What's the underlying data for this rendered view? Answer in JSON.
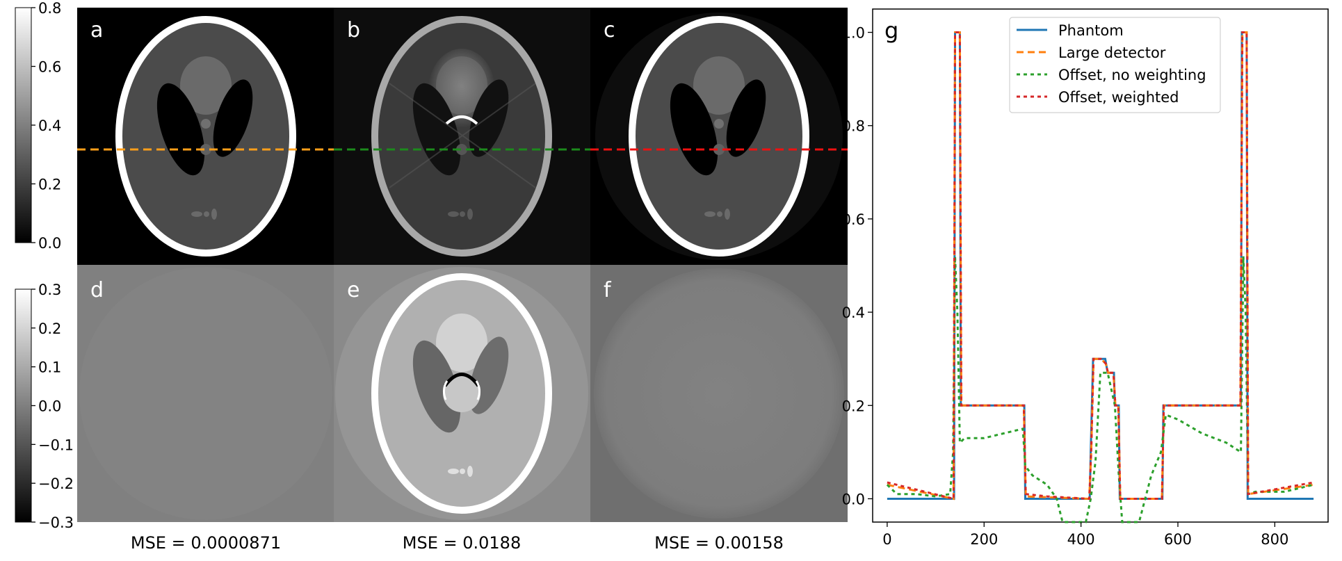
{
  "panels": {
    "top": [
      {
        "letter": "a",
        "line_color": "#ff9f1a"
      },
      {
        "letter": "b",
        "line_color": "#1c8a1c"
      },
      {
        "letter": "c",
        "line_color": "#ee1111"
      }
    ],
    "bottom": [
      {
        "letter": "d",
        "mse": "MSE = 0.0000871"
      },
      {
        "letter": "e",
        "mse": "MSE = 0.0188"
      },
      {
        "letter": "f",
        "mse": "MSE = 0.00158"
      }
    ]
  },
  "colorbars": [
    {
      "range": [
        0.0,
        0.8
      ],
      "ticks": [
        "0.8",
        "0.6",
        "0.4",
        "0.2",
        "0.0"
      ]
    },
    {
      "range": [
        -0.3,
        0.3
      ],
      "ticks": [
        "0.3",
        "0.2",
        "0.1",
        "0.0",
        "−0.1",
        "−0.2",
        "−0.3"
      ]
    }
  ],
  "chart_data": {
    "type": "line",
    "panel_label": "g",
    "xlim": [
      -30,
      910
    ],
    "ylim": [
      -0.05,
      1.05
    ],
    "x_ticks": [
      0,
      200,
      400,
      600,
      800
    ],
    "x_tick_labels": [
      "0",
      "200",
      "400",
      "600",
      "800"
    ],
    "y_ticks": [
      0.0,
      0.2,
      0.4,
      0.6,
      0.8,
      1.0
    ],
    "y_tick_labels": [
      "0.0",
      "0.2",
      "0.4",
      "0.6",
      "0.8",
      "1.0"
    ],
    "xlabel": "",
    "ylabel": "",
    "grid": false,
    "legend_position": "top-center",
    "series": [
      {
        "name": "Phantom",
        "color": "#1f77b4",
        "style": "solid",
        "x": [
          0,
          138,
          140,
          150,
          152,
          283,
          285,
          418,
          420,
          425,
          440,
          450,
          455,
          468,
          470,
          478,
          480,
          568,
          570,
          730,
          732,
          742,
          744,
          880
        ],
        "y": [
          0,
          0,
          1.0,
          1.0,
          0.2,
          0.2,
          0,
          0,
          0.1,
          0.3,
          0.3,
          0.3,
          0.27,
          0.27,
          0.2,
          0.2,
          0,
          0,
          0.2,
          0.2,
          1.0,
          1.0,
          0,
          0
        ]
      },
      {
        "name": "Large detector",
        "color": "#ff7f0e",
        "style": "dashed",
        "x": [
          0,
          137,
          140,
          150,
          153,
          282,
          286,
          417,
          421,
          426,
          441,
          451,
          456,
          467,
          471,
          477,
          481,
          567,
          571,
          729,
          733,
          742,
          745,
          880
        ],
        "y": [
          0.03,
          0,
          1.0,
          1.0,
          0.2,
          0.2,
          0.005,
          0,
          0.1,
          0.3,
          0.3,
          0.29,
          0.27,
          0.27,
          0.2,
          0.2,
          0,
          0,
          0.2,
          0.2,
          1.0,
          1.0,
          0.01,
          0.03
        ]
      },
      {
        "name": "Offset, no weighting",
        "color": "#2ca02c",
        "style": "dotted",
        "x": [
          0,
          20,
          60,
          100,
          130,
          136,
          140,
          145,
          150,
          160,
          200,
          240,
          280,
          285,
          300,
          330,
          350,
          362,
          375,
          395,
          410,
          420,
          430,
          440,
          455,
          470,
          478,
          485,
          520,
          545,
          565,
          575,
          600,
          650,
          700,
          730,
          735,
          740,
          745,
          760,
          820,
          880
        ],
        "y": [
          0.03,
          0.01,
          0.01,
          0.005,
          0.01,
          0.1,
          0.52,
          0.4,
          0.12,
          0.13,
          0.13,
          0.14,
          0.15,
          0.07,
          0.05,
          0.03,
          0.0,
          -0.05,
          -0.05,
          -0.05,
          -0.05,
          0.0,
          0.08,
          0.27,
          0.27,
          0.2,
          0.05,
          -0.05,
          -0.05,
          0.05,
          0.1,
          0.18,
          0.17,
          0.14,
          0.12,
          0.1,
          0.52,
          0.4,
          0.01,
          0.015,
          0.015,
          0.03
        ]
      },
      {
        "name": "Offset, weighted",
        "color": "#d62728",
        "style": "dotted",
        "x": [
          0,
          137,
          140,
          150,
          153,
          282,
          286,
          330,
          417,
          421,
          426,
          441,
          451,
          456,
          467,
          471,
          477,
          481,
          567,
          571,
          729,
          733,
          742,
          745,
          880
        ],
        "y": [
          0.035,
          0,
          1.0,
          1.0,
          0.2,
          0.2,
          0.01,
          0.005,
          0,
          0.1,
          0.3,
          0.3,
          0.29,
          0.27,
          0.27,
          0.2,
          0.2,
          0,
          0,
          0.2,
          0.2,
          1.0,
          1.0,
          0.01,
          0.035
        ]
      }
    ]
  }
}
